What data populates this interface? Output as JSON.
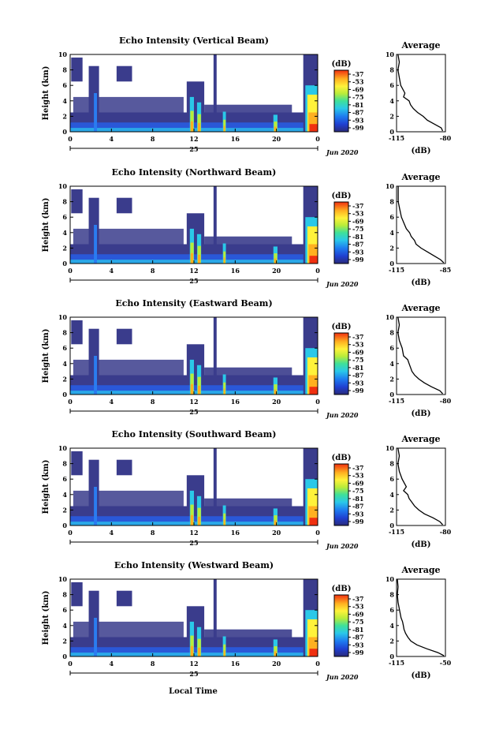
{
  "figure": {
    "xlabel": "Local Time",
    "date_label": "Jun 2020",
    "day_label": "25"
  },
  "chart_data": [
    {
      "type": "heatmap",
      "title": "Echo Intensity (Vertical Beam)",
      "ylabel": "Height (km)",
      "xlim": [
        0,
        24
      ],
      "ylim": [
        0,
        10
      ],
      "xticks": [
        "0",
        "4",
        "8",
        "12",
        "16",
        "20",
        "0"
      ],
      "yticks": [
        "0",
        "2",
        "4",
        "6",
        "8",
        "10"
      ],
      "colorbar": {
        "label": "(dB)",
        "ticks": [
          "-37",
          "-53",
          "-69",
          "-75",
          "-81",
          "-87",
          "-93",
          "-99"
        ],
        "range": [
          -99,
          -37
        ]
      },
      "average": {
        "title": "Average",
        "xlabel": "(dB)",
        "xticks": [
          "-115",
          "-80"
        ],
        "xlim": [
          -115,
          -80
        ],
        "profile": [
          [
            0.1,
            -82
          ],
          [
            0.5,
            -83
          ],
          [
            1,
            -88
          ],
          [
            1.5,
            -93
          ],
          [
            2,
            -96
          ],
          [
            2.5,
            -100
          ],
          [
            3,
            -103
          ],
          [
            3.5,
            -105
          ],
          [
            4,
            -106
          ],
          [
            4.5,
            -110
          ],
          [
            5,
            -109
          ],
          [
            6,
            -112
          ],
          [
            7,
            -113
          ],
          [
            8,
            -114
          ],
          [
            9,
            -113
          ],
          [
            10,
            -114
          ]
        ]
      }
    },
    {
      "type": "heatmap",
      "title": "Echo Intensity (Northward Beam)",
      "ylabel": "Height (km)",
      "xlim": [
        0,
        24
      ],
      "ylim": [
        0,
        10
      ],
      "xticks": [
        "0",
        "4",
        "8",
        "12",
        "16",
        "20",
        "0"
      ],
      "yticks": [
        "0",
        "2",
        "4",
        "6",
        "8",
        "10"
      ],
      "colorbar": {
        "label": "(dB)",
        "ticks": [
          "-37",
          "-53",
          "-69",
          "-75",
          "-81",
          "-87",
          "-93",
          "-99"
        ],
        "range": [
          -99,
          -37
        ]
      },
      "average": {
        "title": "Average",
        "xlabel": "(dB)",
        "xticks": [
          "-115",
          "-85"
        ],
        "xlim": [
          -115,
          -85
        ],
        "profile": [
          [
            0.1,
            -86
          ],
          [
            0.5,
            -88
          ],
          [
            1,
            -92
          ],
          [
            1.5,
            -96
          ],
          [
            2,
            -100
          ],
          [
            2.5,
            -103
          ],
          [
            3,
            -104
          ],
          [
            3.5,
            -106
          ],
          [
            4,
            -107
          ],
          [
            4.5,
            -109
          ],
          [
            5,
            -110
          ],
          [
            6,
            -112
          ],
          [
            7,
            -113
          ],
          [
            8,
            -114
          ],
          [
            9,
            -114
          ],
          [
            10,
            -114
          ]
        ]
      }
    },
    {
      "type": "heatmap",
      "title": "Echo Intensity (Eastward Beam)",
      "ylabel": "Height (km)",
      "xlim": [
        0,
        24
      ],
      "ylim": [
        0,
        10
      ],
      "xticks": [
        "0",
        "4",
        "8",
        "12",
        "16",
        "20",
        "0"
      ],
      "yticks": [
        "0",
        "2",
        "4",
        "6",
        "8",
        "10"
      ],
      "colorbar": {
        "label": "(dB)",
        "ticks": [
          "-37",
          "-53",
          "-69",
          "-75",
          "-81",
          "-87",
          "-93",
          "-99"
        ],
        "range": [
          -99,
          -37
        ]
      },
      "average": {
        "title": "Average",
        "xlabel": "(dB)",
        "xticks": [
          "-115",
          "-80"
        ],
        "xlim": [
          -115,
          -80
        ],
        "profile": [
          [
            0.1,
            -82
          ],
          [
            0.5,
            -84
          ],
          [
            1,
            -90
          ],
          [
            1.5,
            -95
          ],
          [
            2,
            -99
          ],
          [
            2.5,
            -102
          ],
          [
            3,
            -104
          ],
          [
            3.5,
            -105
          ],
          [
            4,
            -106
          ],
          [
            4.5,
            -107
          ],
          [
            5,
            -110
          ],
          [
            6,
            -111
          ],
          [
            7,
            -113
          ],
          [
            8,
            -114
          ],
          [
            9,
            -113
          ],
          [
            10,
            -114
          ]
        ]
      }
    },
    {
      "type": "heatmap",
      "title": "Echo Intensity (Southward Beam)",
      "ylabel": "Height (km)",
      "xlim": [
        0,
        24
      ],
      "ylim": [
        0,
        10
      ],
      "xticks": [
        "0",
        "4",
        "8",
        "12",
        "16",
        "20",
        "0"
      ],
      "yticks": [
        "0",
        "2",
        "4",
        "6",
        "8",
        "10"
      ],
      "colorbar": {
        "label": "(dB)",
        "ticks": [
          "-37",
          "-53",
          "-69",
          "-75",
          "-81",
          "-87",
          "-93",
          "-99"
        ],
        "range": [
          -99,
          -37
        ]
      },
      "average": {
        "title": "Average",
        "xlabel": "(dB)",
        "xticks": [
          "-115",
          "-80"
        ],
        "xlim": [
          -115,
          -80
        ],
        "profile": [
          [
            0.1,
            -82
          ],
          [
            0.5,
            -84
          ],
          [
            1,
            -89
          ],
          [
            1.5,
            -95
          ],
          [
            2,
            -99
          ],
          [
            2.5,
            -102
          ],
          [
            3,
            -104
          ],
          [
            3.5,
            -106
          ],
          [
            4,
            -107
          ],
          [
            4.5,
            -110
          ],
          [
            5,
            -108
          ],
          [
            6,
            -111
          ],
          [
            7,
            -113
          ],
          [
            8,
            -114
          ],
          [
            9,
            -113
          ],
          [
            10,
            -114
          ]
        ]
      }
    },
    {
      "type": "heatmap",
      "title": "Echo Intensity (Westward Beam)",
      "ylabel": "Height (km)",
      "xlim": [
        0,
        24
      ],
      "ylim": [
        0,
        10
      ],
      "xticks": [
        "0",
        "4",
        "8",
        "12",
        "16",
        "20",
        "0"
      ],
      "yticks": [
        "0",
        "2",
        "4",
        "6",
        "8",
        "10"
      ],
      "colorbar": {
        "label": "(dB)",
        "ticks": [
          "-37",
          "-53",
          "-69",
          "-75",
          "-81",
          "-87",
          "-93",
          "-99"
        ],
        "range": [
          -99,
          -37
        ]
      },
      "average": {
        "title": "Average",
        "xlabel": "(dB)",
        "xticks": [
          "-115",
          "-50"
        ],
        "xlim": [
          -115,
          -50
        ],
        "profile": [
          [
            0.1,
            -52
          ],
          [
            0.5,
            -60
          ],
          [
            1,
            -75
          ],
          [
            1.5,
            -88
          ],
          [
            2,
            -96
          ],
          [
            2.5,
            -100
          ],
          [
            3,
            -103
          ],
          [
            3.5,
            -105
          ],
          [
            4,
            -106
          ],
          [
            4.5,
            -107
          ],
          [
            5,
            -109
          ],
          [
            6,
            -111
          ],
          [
            7,
            -113
          ],
          [
            8,
            -114
          ],
          [
            9,
            -113
          ],
          [
            10,
            -114
          ]
        ]
      }
    }
  ]
}
